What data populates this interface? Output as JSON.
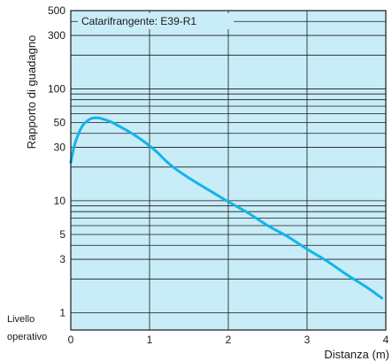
{
  "chart_data": {
    "type": "line",
    "title": "Catarifrangente: E39-R1",
    "xlabel": "Distanza (m)",
    "ylabel": "Rapporto di guadagno",
    "y_scale": "log",
    "xlim": [
      0,
      4
    ],
    "ylim": [
      0.7,
      500
    ],
    "x_ticks": [
      "0",
      "1",
      "2",
      "3",
      "4"
    ],
    "y_ticks": [
      "1",
      "3",
      "5",
      "10",
      "30",
      "50",
      "100",
      "300",
      "500"
    ],
    "baseline_label": [
      "Livello",
      "operativo"
    ],
    "grid": true,
    "colors": {
      "background": "#c8ecf8",
      "curve": "#13b4e8",
      "grid": "#1a1a1a"
    },
    "series": [
      {
        "x": [
          0.0,
          0.02,
          0.05,
          0.1,
          0.15,
          0.2,
          0.25,
          0.3,
          0.35,
          0.4,
          0.5,
          0.6,
          0.7,
          0.8,
          0.9,
          1.0,
          1.1,
          1.2,
          1.3,
          1.5,
          1.75,
          2.0,
          2.25,
          2.5,
          2.75,
          3.0,
          3.25,
          3.5,
          3.75,
          3.95
        ],
        "y": [
          22,
          26,
          32,
          40,
          47,
          51,
          54,
          55,
          55,
          54,
          51,
          47,
          43,
          39,
          35,
          31,
          27,
          23,
          20,
          16,
          12.5,
          9.8,
          7.8,
          6.0,
          4.8,
          3.7,
          2.9,
          2.2,
          1.7,
          1.35
        ]
      }
    ]
  }
}
